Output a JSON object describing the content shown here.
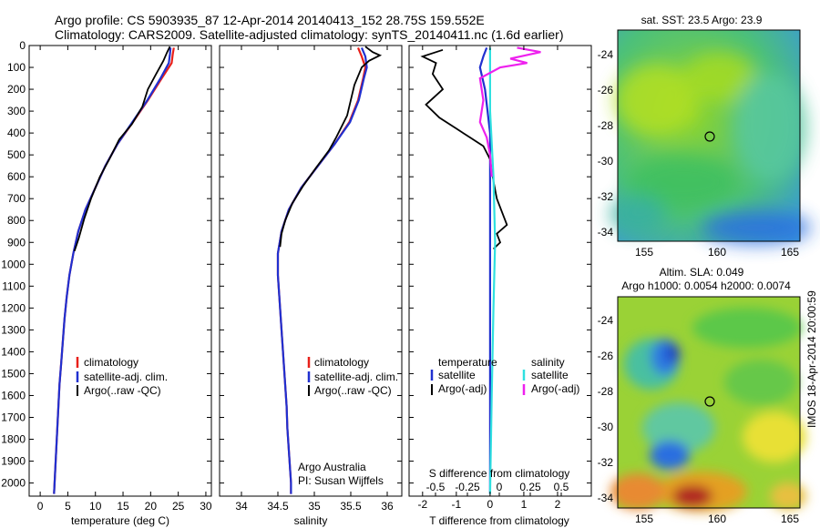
{
  "header": {
    "title_line1": "Argo profile: CS 5903935_87 12-Apr-2014 20140413_152 28.75S 159.552E",
    "title_line2": "Climatology: CARS2009. Satellite-adjusted climatology: synTS_20140411.nc (1.6d earlier)"
  },
  "colors": {
    "red": "#e8201a",
    "blue": "#2030d0",
    "black": "#000000",
    "cyan": "#30e0e0",
    "magenta": "#ee20ee"
  },
  "chart_data": [
    {
      "type": "line",
      "id": "temperature",
      "xlabel": "temperature (deg C)",
      "xlim": [
        -2,
        31
      ],
      "xticks": [
        0,
        5,
        10,
        15,
        20,
        25,
        30
      ],
      "ylim": [
        0,
        2060
      ],
      "yticks": [
        0,
        100,
        200,
        300,
        400,
        500,
        600,
        700,
        800,
        900,
        1000,
        1100,
        1200,
        1300,
        1400,
        1500,
        1600,
        1700,
        1800,
        1900,
        2000
      ],
      "legend": [
        "climatology",
        "satellite-adj. clim.",
        "Argo(..raw -QC)"
      ],
      "series": [
        {
          "name": "climatology",
          "color": "red",
          "points": [
            [
              24.2,
              10
            ],
            [
              24.0,
              40
            ],
            [
              23.8,
              80
            ],
            [
              22.0,
              150
            ],
            [
              19.5,
              250
            ],
            [
              16.8,
              350
            ],
            [
              14.0,
              450
            ],
            [
              11.8,
              550
            ],
            [
              10.0,
              650
            ],
            [
              8.2,
              750
            ],
            [
              6.9,
              850
            ],
            [
              6.0,
              950
            ],
            [
              5.3,
              1050
            ],
            [
              4.8,
              1150
            ],
            [
              4.4,
              1250
            ],
            [
              4.1,
              1350
            ],
            [
              3.8,
              1450
            ],
            [
              3.5,
              1550
            ],
            [
              3.3,
              1650
            ],
            [
              3.1,
              1750
            ],
            [
              2.9,
              1850
            ],
            [
              2.7,
              1950
            ],
            [
              2.6,
              2000
            ],
            [
              2.5,
              2050
            ]
          ]
        },
        {
          "name": "satellite-adj. clim.",
          "color": "blue",
          "points": [
            [
              23.6,
              10
            ],
            [
              23.5,
              40
            ],
            [
              23.3,
              80
            ],
            [
              21.8,
              150
            ],
            [
              19.4,
              250
            ],
            [
              16.7,
              350
            ],
            [
              14.0,
              450
            ],
            [
              11.8,
              550
            ],
            [
              10.0,
              650
            ],
            [
              8.2,
              750
            ],
            [
              6.9,
              850
            ],
            [
              6.0,
              950
            ],
            [
              5.3,
              1050
            ],
            [
              4.8,
              1150
            ],
            [
              4.4,
              1250
            ],
            [
              4.1,
              1350
            ],
            [
              3.8,
              1450
            ],
            [
              3.5,
              1550
            ],
            [
              3.3,
              1650
            ],
            [
              3.1,
              1750
            ],
            [
              2.9,
              1850
            ],
            [
              2.7,
              1950
            ],
            [
              2.6,
              2000
            ],
            [
              2.5,
              2050
            ]
          ]
        },
        {
          "name": "Argo(..raw -QC)",
          "color": "black",
          "points": [
            [
              23.5,
              5
            ],
            [
              23.0,
              30
            ],
            [
              22.3,
              70
            ],
            [
              21.0,
              130
            ],
            [
              19.5,
              200
            ],
            [
              18.5,
              280
            ],
            [
              16.6,
              360
            ],
            [
              14.3,
              430
            ],
            [
              12.5,
              520
            ],
            [
              10.8,
              600
            ],
            [
              9.2,
              700
            ],
            [
              8.0,
              790
            ],
            [
              7.0,
              880
            ],
            [
              6.2,
              940
            ]
          ]
        }
      ]
    },
    {
      "type": "line",
      "id": "salinity",
      "xlabel": "salinity",
      "xlim": [
        33.7,
        36.2
      ],
      "xticks": [
        34,
        34.5,
        35,
        35.5,
        36
      ],
      "ylim": [
        0,
        2060
      ],
      "legend": [
        "climatology",
        "satellite-adj. clim.",
        "Argo(..raw -QC)"
      ],
      "annotation": [
        "Argo Australia",
        "PI: Susan Wijffels"
      ],
      "series": [
        {
          "name": "climatology",
          "color": "red",
          "points": [
            [
              35.6,
              10
            ],
            [
              35.65,
              50
            ],
            [
              35.7,
              100
            ],
            [
              35.67,
              150
            ],
            [
              35.6,
              250
            ],
            [
              35.48,
              350
            ],
            [
              35.28,
              450
            ],
            [
              35.05,
              550
            ],
            [
              34.82,
              650
            ],
            [
              34.65,
              750
            ],
            [
              34.55,
              850
            ],
            [
              34.5,
              950
            ],
            [
              34.5,
              1050
            ],
            [
              34.52,
              1150
            ],
            [
              34.54,
              1250
            ],
            [
              34.56,
              1350
            ],
            [
              34.58,
              1450
            ],
            [
              34.6,
              1550
            ],
            [
              34.62,
              1650
            ],
            [
              34.63,
              1750
            ],
            [
              34.65,
              1850
            ],
            [
              34.67,
              1950
            ],
            [
              34.68,
              2000
            ],
            [
              34.68,
              2050
            ]
          ]
        },
        {
          "name": "satellite-adj. clim.",
          "color": "blue",
          "points": [
            [
              35.65,
              10
            ],
            [
              35.7,
              50
            ],
            [
              35.72,
              100
            ],
            [
              35.68,
              150
            ],
            [
              35.61,
              250
            ],
            [
              35.49,
              350
            ],
            [
              35.28,
              450
            ],
            [
              35.05,
              550
            ],
            [
              34.82,
              650
            ],
            [
              34.65,
              750
            ],
            [
              34.55,
              850
            ],
            [
              34.5,
              950
            ],
            [
              34.5,
              1050
            ],
            [
              34.52,
              1150
            ],
            [
              34.54,
              1250
            ],
            [
              34.56,
              1350
            ],
            [
              34.58,
              1450
            ],
            [
              34.6,
              1550
            ],
            [
              34.62,
              1650
            ],
            [
              34.63,
              1750
            ],
            [
              34.65,
              1850
            ],
            [
              34.67,
              1950
            ],
            [
              34.68,
              2000
            ],
            [
              34.68,
              2050
            ]
          ]
        },
        {
          "name": "Argo(..raw -QC)",
          "color": "black",
          "points": [
            [
              35.7,
              5
            ],
            [
              35.8,
              30
            ],
            [
              35.9,
              45
            ],
            [
              35.75,
              70
            ],
            [
              35.65,
              100
            ],
            [
              35.55,
              180
            ],
            [
              35.5,
              250
            ],
            [
              35.45,
              320
            ],
            [
              35.3,
              420
            ],
            [
              35.2,
              480
            ],
            [
              35.02,
              560
            ],
            [
              34.85,
              640
            ],
            [
              34.7,
              720
            ],
            [
              34.6,
              800
            ],
            [
              34.55,
              860
            ],
            [
              34.53,
              920
            ]
          ]
        }
      ]
    },
    {
      "type": "line",
      "id": "difference",
      "xlabel_top": "S difference from climatology",
      "xlabel": "T difference from climatology",
      "xlim": [
        -2.4,
        3.0
      ],
      "xticks": [
        -2,
        -1,
        0,
        1,
        2
      ],
      "xticks_S": [
        "-0.5",
        "-0.25",
        "0",
        "0.25",
        "0.5"
      ],
      "ylim": [
        0,
        2060
      ],
      "legend_headers": [
        "temperature",
        "salinity"
      ],
      "legend": [
        "satellite",
        "Argo(-adj)",
        "satellite",
        "Argo(-adj)"
      ],
      "series": [
        {
          "name": "satellite",
          "color": "blue",
          "points": [
            [
              -0.1,
              10
            ],
            [
              -0.2,
              50
            ],
            [
              -0.3,
              100
            ],
            [
              -0.15,
              200
            ],
            [
              0.0,
              400
            ],
            [
              0.0,
              2050
            ]
          ]
        },
        {
          "name": "Argo(-adj)",
          "color": "black",
          "points": [
            [
              -1.4,
              20
            ],
            [
              -2.0,
              50
            ],
            [
              -1.6,
              80
            ],
            [
              -1.7,
              130
            ],
            [
              -1.4,
              200
            ],
            [
              -1.9,
              270
            ],
            [
              -1.5,
              330
            ],
            [
              -1.0,
              380
            ],
            [
              -0.6,
              420
            ],
            [
              -0.2,
              460
            ],
            [
              0.0,
              520
            ],
            [
              0.1,
              620
            ],
            [
              0.2,
              700
            ],
            [
              0.4,
              780
            ],
            [
              0.5,
              820
            ],
            [
              0.2,
              860
            ],
            [
              0.3,
              900
            ],
            [
              0.1,
              930
            ]
          ]
        },
        {
          "name": "satellite",
          "color": "cyan",
          "points": [
            [
              0.0,
              10
            ],
            [
              0.0,
              100
            ],
            [
              0.0,
              300
            ],
            [
              0.1,
              600
            ],
            [
              0.15,
              900
            ],
            [
              0.1,
              1200
            ],
            [
              0.05,
              1600
            ],
            [
              0.0,
              2050
            ]
          ]
        },
        {
          "name": "Argo(-adj)",
          "color": "magenta",
          "points": [
            [
              0.8,
              10
            ],
            [
              1.5,
              30
            ],
            [
              0.6,
              60
            ],
            [
              1.1,
              80
            ],
            [
              0.3,
              100
            ],
            [
              -0.3,
              150
            ],
            [
              -0.2,
              250
            ],
            [
              -0.3,
              350
            ],
            [
              -0.1,
              420
            ],
            [
              0.0,
              500
            ],
            [
              0.05,
              600
            ]
          ]
        }
      ]
    }
  ],
  "maps": {
    "sst": {
      "title": "sat. SST: 23.5 Argo: 23.9",
      "xticks": [
        "155",
        "160",
        "165"
      ],
      "yticks": [
        "-24",
        "-26",
        "-28",
        "-30",
        "-32",
        "-34"
      ]
    },
    "sla": {
      "title1": "Altim. SLA: 0.049",
      "title2": "Argo h1000: 0.0054 h2000: 0.0074",
      "xticks": [
        "155",
        "160",
        "165"
      ],
      "yticks": [
        "-24",
        "-26",
        "-28",
        "-30",
        "-32",
        "-34"
      ]
    }
  },
  "footer": {
    "imos_stamp": "IMOS 18-Apr-2014 20:00:59"
  }
}
